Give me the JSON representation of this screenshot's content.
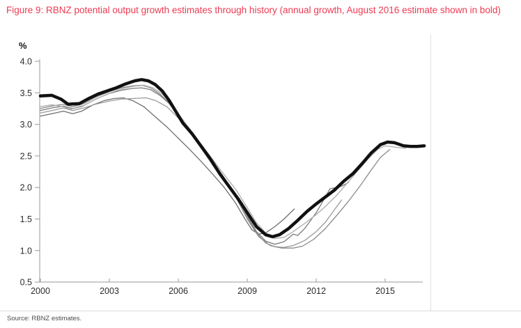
{
  "figure": {
    "title": "Figure 9: RBNZ potential output growth estimates through history (annual growth, August 2016 estimate shown in bold)",
    "source": "Source: RBNZ estimates."
  },
  "colors": {
    "title_text": "#ed3a52",
    "axis": "#999999",
    "tick_label": "#2b2b2b",
    "bold_series": "#111111",
    "divider": "#dfdfdf",
    "source_text": "#4a4a4a"
  },
  "chart_data": {
    "type": "line",
    "title": "RBNZ potential output growth estimates through history",
    "ylabel": "%",
    "xlabel": "",
    "grid": false,
    "legend": "none",
    "xlim": [
      2000,
      2016.7
    ],
    "ylim": [
      0.5,
      4.0
    ],
    "x_ticks": [
      {
        "value": 2000,
        "label": "2000"
      },
      {
        "value": 2003,
        "label": "2003"
      },
      {
        "value": 2006,
        "label": "2006"
      },
      {
        "value": 2009,
        "label": "2009"
      },
      {
        "value": 2012,
        "label": "2012"
      },
      {
        "value": 2015,
        "label": "2015"
      }
    ],
    "y_ticks": [
      {
        "value": 4.0,
        "label": "4.0"
      },
      {
        "value": 3.5,
        "label": "3.5"
      },
      {
        "value": 3.0,
        "label": "3.0"
      },
      {
        "value": 2.5,
        "label": "2.5"
      },
      {
        "value": 2.0,
        "label": "2.0"
      },
      {
        "value": 1.5,
        "label": "1.5"
      },
      {
        "value": 1.0,
        "label": "1.0"
      },
      {
        "value": 0.5,
        "label": "0.5"
      }
    ],
    "series": [
      {
        "name": "earlier-estimate-1",
        "color": "#6e6e6e",
        "width": 1.3,
        "points": [
          [
            2000,
            3.13
          ],
          [
            2000.5,
            3.17
          ],
          [
            2001,
            3.21
          ],
          [
            2001.4,
            3.17
          ],
          [
            2001.8,
            3.21
          ],
          [
            2002.3,
            3.31
          ],
          [
            2002.8,
            3.38
          ],
          [
            2003.2,
            3.41
          ],
          [
            2003.6,
            3.42
          ],
          [
            2004,
            3.38
          ],
          [
            2004.5,
            3.28
          ],
          [
            2005,
            3.12
          ],
          [
            2005.5,
            2.96
          ],
          [
            2006,
            2.78
          ],
          [
            2006.5,
            2.6
          ],
          [
            2007,
            2.41
          ],
          [
            2007.5,
            2.21
          ],
          [
            2008,
            2.0
          ],
          [
            2008.5,
            1.75
          ],
          [
            2008.9,
            1.5
          ],
          [
            2009.2,
            1.33
          ],
          [
            2009.5,
            1.26
          ],
          [
            2009.8,
            1.28
          ],
          [
            2010.2,
            1.38
          ],
          [
            2010.6,
            1.5
          ],
          [
            2011.05,
            1.66
          ]
        ]
      },
      {
        "name": "earlier-estimate-2",
        "color": "#9a9a9a",
        "width": 1.3,
        "points": [
          [
            2000,
            3.18
          ],
          [
            2000.5,
            3.22
          ],
          [
            2001,
            3.26
          ],
          [
            2001.4,
            3.22
          ],
          [
            2001.9,
            3.26
          ],
          [
            2002.4,
            3.32
          ],
          [
            2003,
            3.37
          ],
          [
            2003.5,
            3.4
          ],
          [
            2004,
            3.41
          ],
          [
            2004.6,
            3.42
          ],
          [
            2005,
            3.38
          ],
          [
            2005.5,
            3.28
          ],
          [
            2006,
            3.1
          ],
          [
            2006.5,
            2.88
          ],
          [
            2007,
            2.62
          ],
          [
            2007.5,
            2.35
          ],
          [
            2008,
            2.1
          ],
          [
            2008.5,
            1.85
          ],
          [
            2009,
            1.52
          ],
          [
            2009.4,
            1.28
          ],
          [
            2009.8,
            1.12
          ],
          [
            2010.2,
            1.06
          ],
          [
            2010.6,
            1.05
          ],
          [
            2011,
            1.08
          ],
          [
            2011.5,
            1.16
          ],
          [
            2012,
            1.3
          ],
          [
            2012.4,
            1.45
          ],
          [
            2012.8,
            1.65
          ],
          [
            2013.1,
            1.8
          ]
        ]
      },
      {
        "name": "earlier-estimate-3",
        "color": "#7a7a7a",
        "width": 1.3,
        "points": [
          [
            2000,
            3.22
          ],
          [
            2000.5,
            3.26
          ],
          [
            2001,
            3.29
          ],
          [
            2001.4,
            3.25
          ],
          [
            2001.9,
            3.3
          ],
          [
            2002.4,
            3.4
          ],
          [
            2003,
            3.49
          ],
          [
            2003.5,
            3.54
          ],
          [
            2004,
            3.57
          ],
          [
            2004.4,
            3.58
          ],
          [
            2004.8,
            3.55
          ],
          [
            2005.2,
            3.46
          ],
          [
            2005.6,
            3.33
          ],
          [
            2006,
            3.15
          ],
          [
            2006.5,
            2.92
          ],
          [
            2007,
            2.68
          ],
          [
            2007.5,
            2.42
          ],
          [
            2008,
            2.15
          ],
          [
            2008.5,
            1.88
          ],
          [
            2009,
            1.55
          ],
          [
            2009.4,
            1.3
          ],
          [
            2009.8,
            1.15
          ],
          [
            2010.2,
            1.1
          ],
          [
            2010.6,
            1.14
          ],
          [
            2011,
            1.26
          ],
          [
            2011.2,
            1.24
          ],
          [
            2011.5,
            1.35
          ],
          [
            2012,
            1.6
          ],
          [
            2012.4,
            1.85
          ],
          [
            2012.6,
            1.98
          ],
          [
            2012.9,
            2.0
          ],
          [
            2013.1,
            2.02
          ],
          [
            2013.4,
            2.08
          ]
        ]
      },
      {
        "name": "earlier-estimate-4",
        "color": "#8a8a8a",
        "width": 1.3,
        "points": [
          [
            2000,
            3.25
          ],
          [
            2000.5,
            3.29
          ],
          [
            2001,
            3.32
          ],
          [
            2001.4,
            3.28
          ],
          [
            2001.9,
            3.33
          ],
          [
            2002.4,
            3.43
          ],
          [
            2003,
            3.52
          ],
          [
            2003.5,
            3.58
          ],
          [
            2004,
            3.61
          ],
          [
            2004.4,
            3.62
          ],
          [
            2004.8,
            3.58
          ],
          [
            2005.2,
            3.48
          ],
          [
            2005.6,
            3.34
          ],
          [
            2006,
            3.14
          ],
          [
            2006.5,
            2.9
          ],
          [
            2007,
            2.64
          ],
          [
            2007.5,
            2.38
          ],
          [
            2008,
            2.12
          ],
          [
            2008.5,
            1.85
          ],
          [
            2009,
            1.5
          ],
          [
            2009.5,
            1.22
          ],
          [
            2010,
            1.08
          ],
          [
            2010.5,
            1.04
          ],
          [
            2011,
            1.04
          ],
          [
            2011.4,
            1.07
          ],
          [
            2011.9,
            1.18
          ],
          [
            2012.4,
            1.35
          ],
          [
            2012.9,
            1.56
          ],
          [
            2013.4,
            1.78
          ],
          [
            2013.9,
            2.02
          ],
          [
            2014.4,
            2.28
          ],
          [
            2014.8,
            2.48
          ],
          [
            2015.2,
            2.6
          ]
        ]
      },
      {
        "name": "earlier-estimate-5",
        "color": "#b0b0b0",
        "width": 1.4,
        "points": [
          [
            2000,
            3.28
          ],
          [
            2000.5,
            3.31
          ],
          [
            2001,
            3.28
          ],
          [
            2001.3,
            3.24
          ],
          [
            2001.8,
            3.28
          ],
          [
            2002.3,
            3.38
          ],
          [
            2002.9,
            3.48
          ],
          [
            2003.5,
            3.56
          ],
          [
            2004,
            3.6
          ],
          [
            2004.5,
            3.62
          ],
          [
            2004.9,
            3.58
          ],
          [
            2005.3,
            3.48
          ],
          [
            2005.7,
            3.33
          ],
          [
            2006.1,
            3.12
          ],
          [
            2006.5,
            2.93
          ],
          [
            2007,
            2.68
          ],
          [
            2007.5,
            2.44
          ],
          [
            2008,
            2.2
          ],
          [
            2008.5,
            1.97
          ],
          [
            2009,
            1.68
          ],
          [
            2009.4,
            1.44
          ],
          [
            2009.8,
            1.28
          ],
          [
            2010.2,
            1.19
          ],
          [
            2010.6,
            1.21
          ],
          [
            2011,
            1.3
          ],
          [
            2011.5,
            1.43
          ],
          [
            2012,
            1.57
          ],
          [
            2012.4,
            1.7
          ],
          [
            2012.9,
            1.88
          ],
          [
            2013.3,
            2.05
          ],
          [
            2013.8,
            2.26
          ],
          [
            2014.3,
            2.47
          ],
          [
            2014.7,
            2.61
          ],
          [
            2015,
            2.66
          ],
          [
            2015.4,
            2.64
          ],
          [
            2015.9,
            2.62
          ]
        ]
      },
      {
        "name": "august-2016-estimate-bold",
        "color": "#111111",
        "width": 4.5,
        "points": [
          [
            2000,
            3.45
          ],
          [
            2000.5,
            3.46
          ],
          [
            2000.9,
            3.4
          ],
          [
            2001.2,
            3.32
          ],
          [
            2001.7,
            3.33
          ],
          [
            2002.1,
            3.41
          ],
          [
            2002.5,
            3.48
          ],
          [
            2002.9,
            3.53
          ],
          [
            2003.3,
            3.58
          ],
          [
            2003.7,
            3.64
          ],
          [
            2004.1,
            3.69
          ],
          [
            2004.4,
            3.71
          ],
          [
            2004.7,
            3.69
          ],
          [
            2005,
            3.63
          ],
          [
            2005.3,
            3.53
          ],
          [
            2005.6,
            3.38
          ],
          [
            2005.9,
            3.2
          ],
          [
            2006.2,
            3.02
          ],
          [
            2006.6,
            2.85
          ],
          [
            2007,
            2.65
          ],
          [
            2007.4,
            2.45
          ],
          [
            2007.8,
            2.22
          ],
          [
            2008.2,
            2.02
          ],
          [
            2008.6,
            1.82
          ],
          [
            2009,
            1.6
          ],
          [
            2009.4,
            1.38
          ],
          [
            2009.8,
            1.25
          ],
          [
            2010.1,
            1.22
          ],
          [
            2010.4,
            1.25
          ],
          [
            2010.8,
            1.35
          ],
          [
            2011.2,
            1.48
          ],
          [
            2011.6,
            1.62
          ],
          [
            2012,
            1.74
          ],
          [
            2012.4,
            1.85
          ],
          [
            2012.8,
            1.96
          ],
          [
            2013.2,
            2.1
          ],
          [
            2013.6,
            2.22
          ],
          [
            2014,
            2.38
          ],
          [
            2014.4,
            2.55
          ],
          [
            2014.8,
            2.68
          ],
          [
            2015.1,
            2.72
          ],
          [
            2015.4,
            2.71
          ],
          [
            2015.8,
            2.66
          ],
          [
            2016.1,
            2.65
          ],
          [
            2016.4,
            2.65
          ],
          [
            2016.7,
            2.66
          ]
        ]
      }
    ]
  }
}
